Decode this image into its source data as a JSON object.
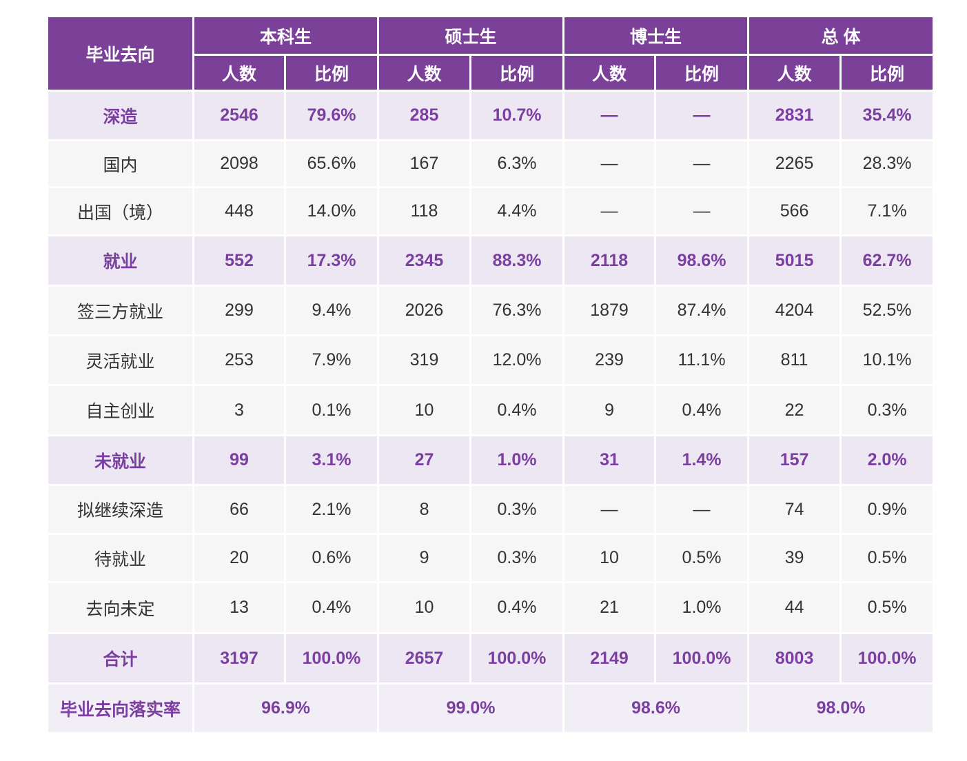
{
  "table": {
    "corner": "毕业去向",
    "groups": [
      "本科生",
      "硕士生",
      "博士生",
      "总 体"
    ],
    "subheaders": [
      "人数",
      "比例",
      "人数",
      "比例",
      "人数",
      "比例",
      "人数",
      "比例"
    ],
    "rows": [
      {
        "label": "深造",
        "highlight": true,
        "cells": [
          "2546",
          "79.6%",
          "285",
          "10.7%",
          "—",
          "—",
          "2831",
          "35.4%"
        ]
      },
      {
        "label": "国内",
        "highlight": false,
        "cells": [
          "2098",
          "65.6%",
          "167",
          "6.3%",
          "—",
          "—",
          "2265",
          "28.3%"
        ]
      },
      {
        "label": "出国（境）",
        "highlight": false,
        "cells": [
          "448",
          "14.0%",
          "118",
          "4.4%",
          "—",
          "—",
          "566",
          "7.1%"
        ]
      },
      {
        "label": "就业",
        "highlight": true,
        "cells": [
          "552",
          "17.3%",
          "2345",
          "88.3%",
          "2118",
          "98.6%",
          "5015",
          "62.7%"
        ]
      },
      {
        "label": "签三方就业",
        "highlight": false,
        "cells": [
          "299",
          "9.4%",
          "2026",
          "76.3%",
          "1879",
          "87.4%",
          "4204",
          "52.5%"
        ]
      },
      {
        "label": "灵活就业",
        "highlight": false,
        "cells": [
          "253",
          "7.9%",
          "319",
          "12.0%",
          "239",
          "11.1%",
          "811",
          "10.1%"
        ]
      },
      {
        "label": "自主创业",
        "highlight": false,
        "cells": [
          "3",
          "0.1%",
          "10",
          "0.4%",
          "9",
          "0.4%",
          "22",
          "0.3%"
        ]
      },
      {
        "label": "未就业",
        "highlight": true,
        "cells": [
          "99",
          "3.1%",
          "27",
          "1.0%",
          "31",
          "1.4%",
          "157",
          "2.0%"
        ]
      },
      {
        "label": "拟继续深造",
        "highlight": false,
        "cells": [
          "66",
          "2.1%",
          "8",
          "0.3%",
          "—",
          "—",
          "74",
          "0.9%"
        ]
      },
      {
        "label": "待就业",
        "highlight": false,
        "cells": [
          "20",
          "0.6%",
          "9",
          "0.3%",
          "10",
          "0.5%",
          "39",
          "0.5%"
        ]
      },
      {
        "label": "去向未定",
        "highlight": false,
        "cells": [
          "13",
          "0.4%",
          "10",
          "0.4%",
          "21",
          "1.0%",
          "44",
          "0.5%"
        ]
      },
      {
        "label": "合计",
        "highlight": true,
        "cells": [
          "3197",
          "100.0%",
          "2657",
          "100.0%",
          "2149",
          "100.0%",
          "8003",
          "100.0%"
        ]
      }
    ],
    "rate": {
      "label": "毕业去向落实率",
      "cells": [
        "96.9%",
        "99.0%",
        "98.6%",
        "98.0%"
      ]
    }
  }
}
